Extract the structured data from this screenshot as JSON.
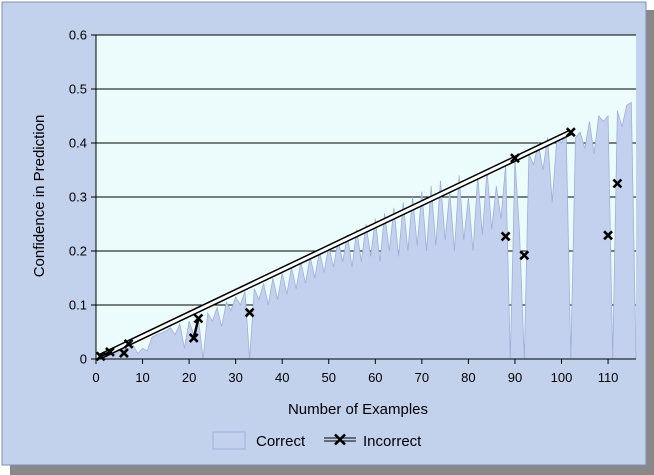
{
  "chart_data": {
    "type": "area",
    "title": "",
    "xlabel": "Number of Examples",
    "ylabel": "Confidence in Prediction",
    "xlim": [
      0,
      116
    ],
    "ylim": [
      0,
      0.6
    ],
    "x_ticks": [
      "0",
      "10",
      "20",
      "30",
      "40",
      "50",
      "60",
      "70",
      "80",
      "90",
      "100",
      "110"
    ],
    "y_ticks": [
      "0",
      "0.1",
      "0.2",
      "0.3",
      "0.4",
      "0.5",
      "0.6"
    ],
    "grid": true,
    "legend_position": "bottom",
    "colors": {
      "panel": "#c3d2ec",
      "plot_background": "#ecfcfc",
      "correct_fill": "#c3d0ee",
      "correct_stroke": "#9fb0d8",
      "line": "#000000"
    },
    "series": [
      {
        "name": "Correct",
        "kind": "area",
        "x": [
          0,
          1,
          2,
          3,
          4,
          5,
          6,
          7,
          8,
          9,
          10,
          11,
          12,
          13,
          14,
          15,
          16,
          17,
          18,
          19,
          20,
          21,
          22,
          23,
          24,
          25,
          26,
          27,
          28,
          29,
          30,
          31,
          32,
          33,
          34,
          35,
          36,
          37,
          38,
          39,
          40,
          41,
          42,
          43,
          44,
          45,
          46,
          47,
          48,
          49,
          50,
          51,
          52,
          53,
          54,
          55,
          56,
          57,
          58,
          59,
          60,
          61,
          62,
          63,
          64,
          65,
          66,
          67,
          68,
          69,
          70,
          71,
          72,
          73,
          74,
          75,
          76,
          77,
          78,
          79,
          80,
          81,
          82,
          83,
          84,
          85,
          86,
          87,
          88,
          89,
          90,
          91,
          92,
          93,
          94,
          95,
          96,
          97,
          98,
          99,
          100,
          101,
          102,
          103,
          104,
          105,
          106,
          107,
          108,
          109,
          110,
          111,
          112,
          113,
          114,
          115,
          116
        ],
        "y": [
          0,
          0.004,
          0.006,
          0.01,
          0.012,
          0.015,
          0.018,
          0.02,
          0.025,
          0.01,
          0.02,
          0.015,
          0.04,
          0.045,
          0.048,
          0.052,
          0.058,
          0.045,
          0.065,
          0.02,
          0.07,
          0.045,
          0.075,
          0.0,
          0.085,
          0.07,
          0.095,
          0.06,
          0.105,
          0.09,
          0.115,
          0.1,
          0.125,
          0.0,
          0.13,
          0.11,
          0.14,
          0.1,
          0.15,
          0.11,
          0.16,
          0.12,
          0.17,
          0.13,
          0.18,
          0.14,
          0.19,
          0.15,
          0.2,
          0.16,
          0.21,
          0.17,
          0.22,
          0.18,
          0.23,
          0.17,
          0.24,
          0.18,
          0.25,
          0.19,
          0.26,
          0.18,
          0.27,
          0.2,
          0.28,
          0.19,
          0.29,
          0.2,
          0.3,
          0.21,
          0.31,
          0.2,
          0.32,
          0.21,
          0.33,
          0.22,
          0.31,
          0.2,
          0.34,
          0.22,
          0.3,
          0.2,
          0.34,
          0.23,
          0.35,
          0.24,
          0.32,
          0.26,
          0.36,
          0.0,
          0.37,
          0.23,
          0.0,
          0.38,
          0.36,
          0.4,
          0.35,
          0.41,
          0.29,
          0.41,
          0.4,
          0.42,
          0.0,
          0.41,
          0.42,
          0.39,
          0.44,
          0.38,
          0.45,
          0.44,
          0.45,
          0.0,
          0.46,
          0.43,
          0.47,
          0.475,
          0.0
        ]
      },
      {
        "name": "Incorrect",
        "kind": "line-markers",
        "points": [
          {
            "x": 1,
            "y": 0.005
          },
          {
            "x": 3,
            "y": 0.013
          },
          {
            "x": 6,
            "y": 0.011
          },
          {
            "x": 7,
            "y": 0.028
          },
          {
            "x": 21,
            "y": 0.039
          },
          {
            "x": 22,
            "y": 0.075
          },
          {
            "x": 33,
            "y": 0.086
          },
          {
            "x": 88,
            "y": 0.227
          },
          {
            "x": 90,
            "y": 0.372
          },
          {
            "x": 92,
            "y": 0.192
          },
          {
            "x": 102,
            "y": 0.42
          },
          {
            "x": 110,
            "y": 0.229
          },
          {
            "x": 112,
            "y": 0.325
          }
        ],
        "segments": [
          [
            0,
            1
          ],
          [
            4,
            5
          ]
        ],
        "trend_line": {
          "from": {
            "x": 1,
            "y": 0.005
          },
          "to": {
            "x": 102,
            "y": 0.42
          }
        }
      }
    ],
    "legend": [
      "Correct",
      "Incorrect"
    ]
  }
}
